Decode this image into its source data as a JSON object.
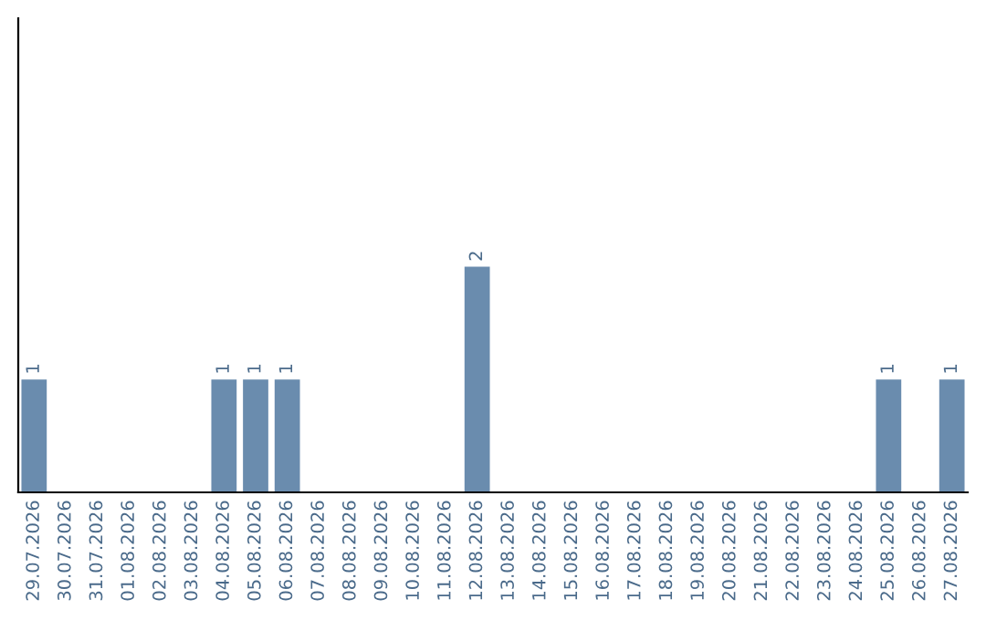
{
  "chart_data": {
    "type": "bar",
    "categories": [
      "29.07.2026",
      "30.07.2026",
      "31.07.2026",
      "01.08.2026",
      "02.08.2026",
      "03.08.2026",
      "04.08.2026",
      "05.08.2026",
      "06.08.2026",
      "07.08.2026",
      "08.08.2026",
      "09.08.2026",
      "10.08.2026",
      "11.08.2026",
      "12.08.2026",
      "13.08.2026",
      "14.08.2026",
      "15.08.2026",
      "16.08.2026",
      "17.08.2026",
      "18.08.2026",
      "19.08.2026",
      "20.08.2026",
      "21.08.2026",
      "22.08.2026",
      "23.08.2026",
      "24.08.2026",
      "25.08.2026",
      "26.08.2026",
      "27.08.2026"
    ],
    "values": [
      1,
      0,
      0,
      0,
      0,
      0,
      1,
      1,
      1,
      0,
      0,
      0,
      0,
      0,
      2,
      0,
      0,
      0,
      0,
      0,
      0,
      0,
      0,
      0,
      0,
      0,
      0,
      1,
      0,
      1
    ],
    "value_labels": [
      "1",
      null,
      null,
      null,
      null,
      null,
      "1",
      "1",
      "1",
      null,
      null,
      null,
      null,
      null,
      "2",
      null,
      null,
      null,
      null,
      null,
      null,
      null,
      null,
      null,
      null,
      null,
      null,
      "1",
      null,
      "1"
    ],
    "color": "#6a8cae",
    "ylim": [
      0,
      4.2
    ],
    "tick_labels": "x",
    "grid": false,
    "legend": false
  }
}
